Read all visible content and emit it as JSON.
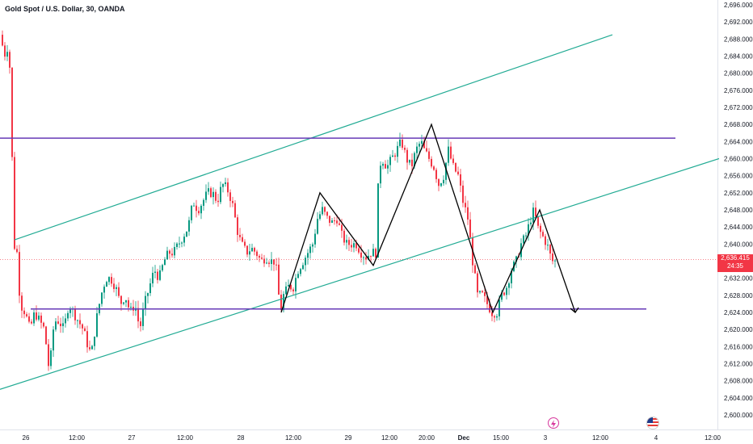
{
  "header": {
    "symbol_title": "Gold Spot / U.S. Dollar, 30, OANDA"
  },
  "price_axis": {
    "labels": [
      "2,696.000",
      "2,692.000",
      "2,688.000",
      "2,684.000",
      "2,680.000",
      "2,676.000",
      "2,672.000",
      "2,668.000",
      "2,664.000",
      "2,660.000",
      "2,656.000",
      "2,652.000",
      "2,648.000",
      "2,644.000",
      "2,640.000",
      "2,636.000",
      "2,632.000",
      "2,628.000",
      "2,624.000",
      "2,620.000",
      "2,616.000",
      "2,612.000",
      "2,608.000",
      "2,604.000",
      "2,600.000"
    ],
    "current_price": "2,636.415",
    "countdown": "24:35"
  },
  "time_axis": {
    "labels": [
      "26",
      "12:00",
      "27",
      "12:00",
      "28",
      "12:00",
      "29",
      "12:00",
      "20:00",
      "Dec",
      "15:00",
      "3",
      "12:00",
      "4",
      "12:00"
    ]
  },
  "colors": {
    "up": "#089981",
    "down": "#f23645",
    "channel": "#22ab94",
    "level": "#673ab7",
    "pattern": "#000000",
    "price_tag": "#f23645"
  },
  "icons": {
    "event_icon": "lightning-icon",
    "flag_icon": "us-flag-icon"
  },
  "chart_data": {
    "type": "candlestick",
    "title": "Gold Spot / U.S. Dollar, 30, OANDA",
    "ylim": [
      2598,
      2697
    ],
    "y_ticks": [
      2696,
      2692,
      2688,
      2684,
      2680,
      2676,
      2672,
      2668,
      2664,
      2660,
      2656,
      2652,
      2648,
      2644,
      2640,
      2636,
      2632,
      2628,
      2624,
      2620,
      2616,
      2612,
      2608,
      2604,
      2600
    ],
    "current_price": 2636.415,
    "x_labels": [
      "26",
      "12:00",
      "27",
      "12:00",
      "28",
      "12:00",
      "29",
      "12:00",
      "20:00",
      "Dec",
      "15:00",
      "3",
      "12:00",
      "4",
      "12:00"
    ],
    "approx_close_path": [
      [
        0,
        2689
      ],
      [
        4,
        2684
      ],
      [
        8,
        2686
      ],
      [
        12,
        2680
      ],
      [
        16,
        2640
      ],
      [
        20,
        2638
      ],
      [
        24,
        2626
      ],
      [
        30,
        2624
      ],
      [
        36,
        2620
      ],
      [
        42,
        2624
      ],
      [
        48,
        2622
      ],
      [
        54,
        2620
      ],
      [
        60,
        2610
      ],
      [
        66,
        2622
      ],
      [
        72,
        2622
      ],
      [
        78,
        2620
      ],
      [
        84,
        2626
      ],
      [
        90,
        2624
      ],
      [
        96,
        2622
      ],
      [
        102,
        2620
      ],
      [
        108,
        2616
      ],
      [
        112,
        2614
      ],
      [
        118,
        2622
      ],
      [
        124,
        2628
      ],
      [
        130,
        2632
      ],
      [
        136,
        2632
      ],
      [
        142,
        2630
      ],
      [
        148,
        2626
      ],
      [
        154,
        2628
      ],
      [
        160,
        2624
      ],
      [
        166,
        2626
      ],
      [
        172,
        2620
      ],
      [
        178,
        2626
      ],
      [
        184,
        2630
      ],
      [
        190,
        2634
      ],
      [
        196,
        2632
      ],
      [
        202,
        2636
      ],
      [
        208,
        2638
      ],
      [
        214,
        2638
      ],
      [
        220,
        2640
      ],
      [
        226,
        2642
      ],
      [
        232,
        2644
      ],
      [
        238,
        2650
      ],
      [
        244,
        2648
      ],
      [
        250,
        2650
      ],
      [
        256,
        2652
      ],
      [
        262,
        2652
      ],
      [
        268,
        2650
      ],
      [
        274,
        2654
      ],
      [
        280,
        2653
      ],
      [
        286,
        2650
      ],
      [
        290,
        2646
      ],
      [
        294,
        2642
      ],
      [
        298,
        2640
      ],
      [
        304,
        2638
      ],
      [
        310,
        2639
      ],
      [
        316,
        2638
      ],
      [
        322,
        2636
      ],
      [
        328,
        2637
      ],
      [
        334,
        2636
      ],
      [
        340,
        2636
      ],
      [
        346,
        2624
      ],
      [
        350,
        2628
      ],
      [
        356,
        2630
      ],
      [
        362,
        2630
      ],
      [
        368,
        2634
      ],
      [
        374,
        2636
      ],
      [
        380,
        2638
      ],
      [
        386,
        2640
      ],
      [
        392,
        2646
      ],
      [
        398,
        2648
      ],
      [
        404,
        2646
      ],
      [
        410,
        2645
      ],
      [
        416,
        2646
      ],
      [
        422,
        2642
      ],
      [
        428,
        2640
      ],
      [
        434,
        2640
      ],
      [
        440,
        2640
      ],
      [
        446,
        2638
      ],
      [
        452,
        2637
      ],
      [
        458,
        2638
      ],
      [
        464,
        2638
      ],
      [
        468,
        2658
      ],
      [
        472,
        2660
      ],
      [
        478,
        2658
      ],
      [
        484,
        2660
      ],
      [
        490,
        2662
      ],
      [
        496,
        2664
      ],
      [
        502,
        2660
      ],
      [
        508,
        2658
      ],
      [
        514,
        2662
      ],
      [
        520,
        2664
      ],
      [
        524,
        2662
      ],
      [
        530,
        2660
      ],
      [
        536,
        2658
      ],
      [
        542,
        2654
      ],
      [
        548,
        2656
      ],
      [
        554,
        2662
      ],
      [
        560,
        2658
      ],
      [
        566,
        2656
      ],
      [
        572,
        2650
      ],
      [
        578,
        2646
      ],
      [
        584,
        2636
      ],
      [
        590,
        2628
      ],
      [
        596,
        2628
      ],
      [
        602,
        2626
      ],
      [
        608,
        2624
      ],
      [
        614,
        2624
      ],
      [
        620,
        2628
      ],
      [
        626,
        2630
      ],
      [
        632,
        2634
      ],
      [
        638,
        2636
      ],
      [
        644,
        2640
      ],
      [
        650,
        2642
      ],
      [
        656,
        2646
      ],
      [
        660,
        2648
      ],
      [
        664,
        2644
      ],
      [
        670,
        2642
      ],
      [
        676,
        2640
      ],
      [
        682,
        2636
      ],
      [
        686,
        2636
      ]
    ],
    "drawings": {
      "channel_lower": [
        [
          0,
          2606
        ],
        [
          890,
          2660
        ]
      ],
      "channel_upper": [
        [
          18,
          2641
        ],
        [
          758,
          2689
        ]
      ],
      "resistance": [
        [
          0,
          2664.8
        ],
        [
          836,
          2664.8
        ]
      ],
      "support": [
        [
          38,
          2624.8
        ],
        [
          800,
          2624.8
        ]
      ],
      "pattern_path": [
        [
          348,
          2624
        ],
        [
          396,
          2652
        ],
        [
          462,
          2635
        ],
        [
          534,
          2668
        ],
        [
          610,
          2624
        ],
        [
          668,
          2648
        ],
        [
          712,
          2624
        ]
      ]
    }
  }
}
